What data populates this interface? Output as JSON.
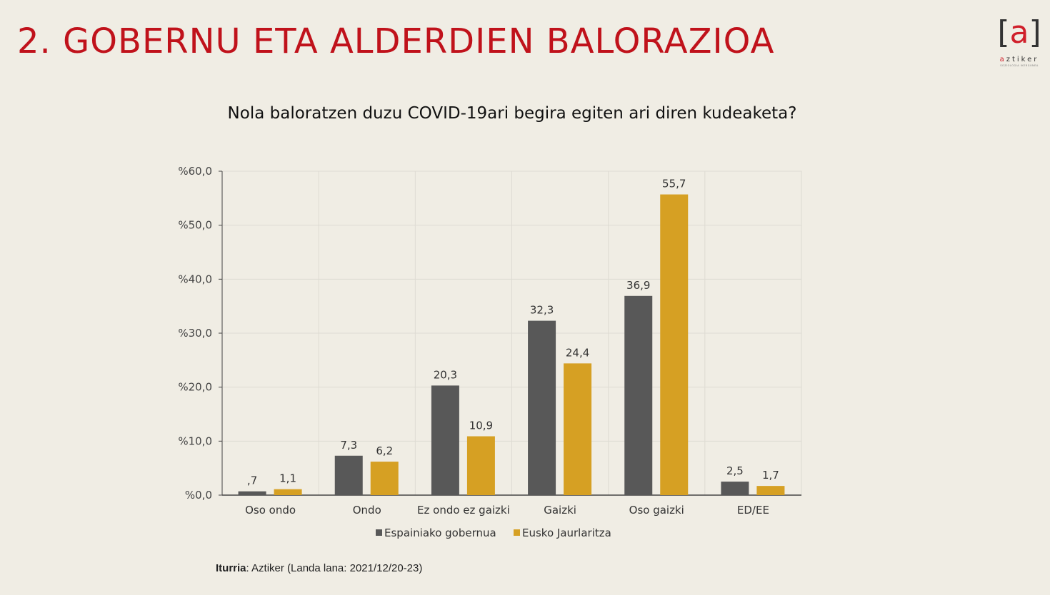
{
  "slide": {
    "title": "2. GOBERNU ETA ALDERDIEN BALORAZIOA"
  },
  "logo": {
    "mark_open": "[",
    "mark_letter": "a",
    "mark_close": "]",
    "word_a": "a",
    "word_rest": "ztiker",
    "tagline": "SOZIOLOGIA IKERGUNEA"
  },
  "colors": {
    "title": "#c0121b",
    "series_1": "#585858",
    "series_2": "#d6a023"
  },
  "source": {
    "label": "Iturria",
    "text": ": Aztiker (Landa lana: 2021/12/20-23)"
  },
  "chart_data": {
    "type": "bar",
    "title": "Nola baloratzen duzu COVID-19ari begira egiten ari diren kudeaketa?",
    "categories": [
      "Oso ondo",
      "Ondo",
      "Ez ondo ez gaizki",
      "Gaizki",
      "Oso gaizki",
      "ED/EE"
    ],
    "series": [
      {
        "name": "Espainiako gobernua",
        "values": [
          0.7,
          7.3,
          20.3,
          32.3,
          36.9,
          2.5
        ],
        "labels": [
          ",7",
          "7,3",
          "20,3",
          "32,3",
          "36,9",
          "2,5"
        ],
        "color": "#585858"
      },
      {
        "name": "Eusko Jaurlaritza",
        "values": [
          1.1,
          6.2,
          10.9,
          24.4,
          55.7,
          1.7
        ],
        "labels": [
          "1,1",
          "6,2",
          "10,9",
          "24,4",
          "55,7",
          "1,7"
        ],
        "color": "#d6a023"
      }
    ],
    "yticks": [
      "%0,0",
      "%10,0",
      "%20,0",
      "%30,0",
      "%40,0",
      "%50,0",
      "%60,0"
    ],
    "ylim": [
      0,
      60
    ],
    "grid": true,
    "legend": "bottom"
  }
}
